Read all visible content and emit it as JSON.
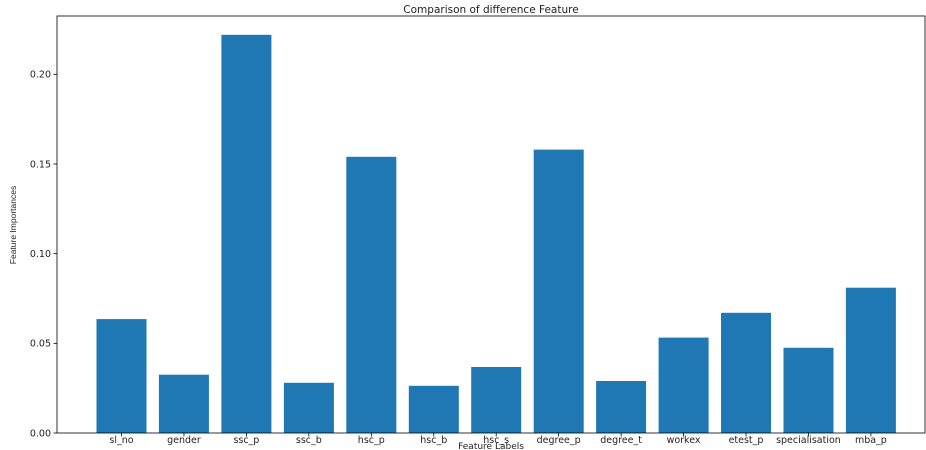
{
  "chart_data": {
    "type": "bar",
    "title": "Comparison of difference Feature",
    "xlabel": "Feature Labels",
    "ylabel": "Feature Importances",
    "categories": [
      "sl_no",
      "gender",
      "ssc_p",
      "ssc_b",
      "hsc_p",
      "hsc_b",
      "hsc_s",
      "degree_p",
      "degree_t",
      "workex",
      "etest_p",
      "specialisation",
      "mba_p"
    ],
    "values": [
      0.0635,
      0.0325,
      0.222,
      0.028,
      0.154,
      0.0263,
      0.0368,
      0.158,
      0.029,
      0.0532,
      0.067,
      0.0475,
      0.081
    ],
    "ylim": [
      0,
      0.2325
    ],
    "yticks": [
      0.0,
      0.05,
      0.1,
      0.15,
      0.2
    ],
    "ytick_labels": [
      "0.00",
      "0.05",
      "0.10",
      "0.15",
      "0.20"
    ],
    "bar_color": "#1f77b4",
    "grid": false
  }
}
